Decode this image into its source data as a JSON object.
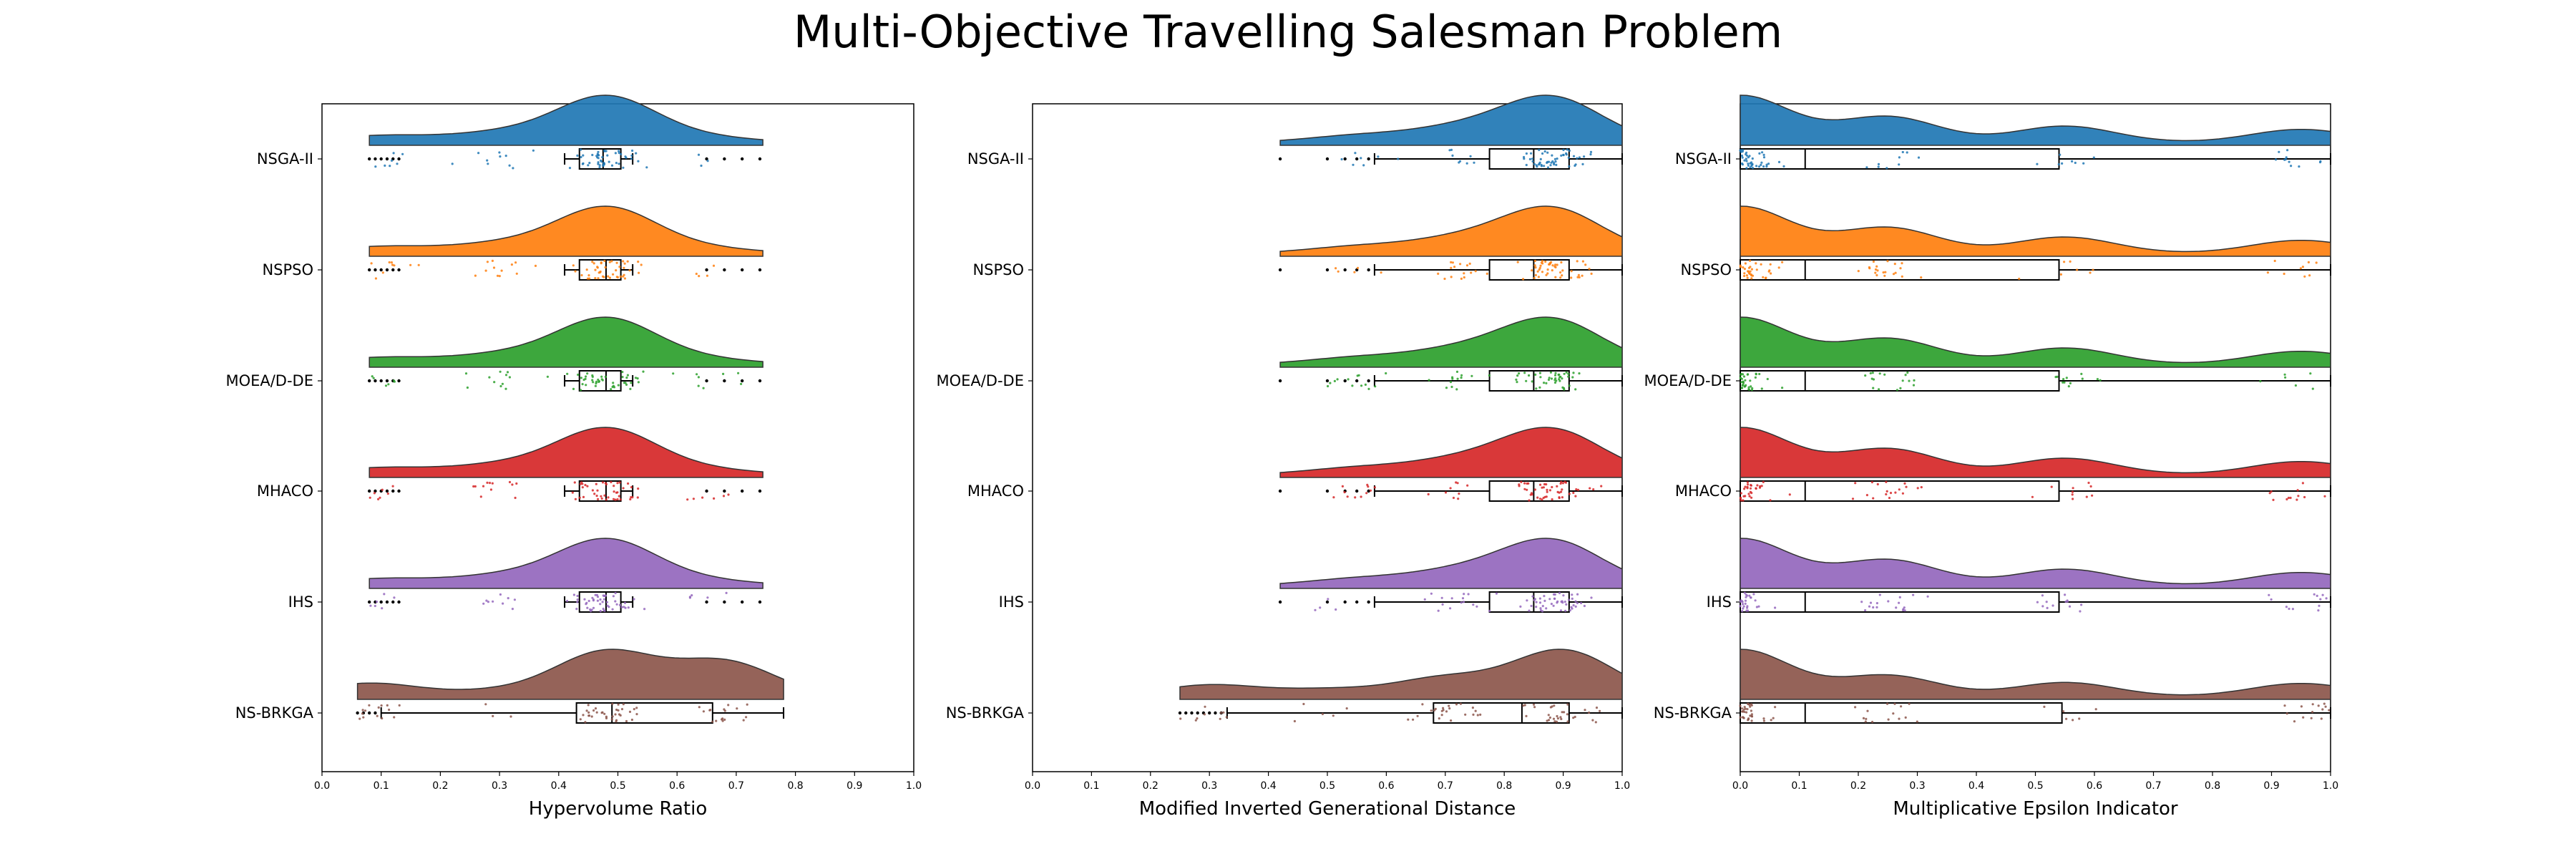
{
  "title": "Multi-Objective Travelling Salesman Problem",
  "colors": {
    "NSGA-II": "#1f77b4",
    "NSPSO": "#ff7f0e",
    "MOEA/D-DE": "#2ca02c",
    "MHACO": "#d62728",
    "IHS": "#9467bd",
    "NS-BRKGA": "#8c564b"
  },
  "chart_data": [
    {
      "type": "raincloud",
      "xlabel": "Hypervolume Ratio",
      "xlim": [
        0.0,
        1.0
      ],
      "xticks": [
        "0.0",
        "0.1",
        "0.2",
        "0.3",
        "0.4",
        "0.5",
        "0.6",
        "0.7",
        "0.8",
        "0.9",
        "1.0"
      ],
      "categories": [
        "NSGA-II",
        "NSPSO",
        "MOEA/D-DE",
        "MHACO",
        "IHS",
        "NS-BRKGA"
      ],
      "series": [
        {
          "name": "NSGA-II",
          "box": {
            "whislo": 0.41,
            "q1": 0.435,
            "med": 0.475,
            "q3": 0.505,
            "whishi": 0.525
          },
          "outliers": [
            0.08,
            0.09,
            0.1,
            0.11,
            0.12,
            0.13,
            0.65,
            0.68,
            0.71,
            0.74
          ],
          "kde_range": [
            0.08,
            0.745
          ],
          "kde": [
            [
              0.1,
              0.15
            ],
            [
              0.3,
              0.2
            ],
            [
              0.48,
              1.0
            ],
            [
              0.65,
              0.1
            ]
          ]
        },
        {
          "name": "NSPSO",
          "box": {
            "whislo": 0.41,
            "q1": 0.435,
            "med": 0.48,
            "q3": 0.505,
            "whishi": 0.525
          },
          "outliers": [
            0.08,
            0.09,
            0.1,
            0.11,
            0.12,
            0.13,
            0.65,
            0.68,
            0.71,
            0.74
          ],
          "kde_range": [
            0.08,
            0.745
          ],
          "kde": [
            [
              0.1,
              0.15
            ],
            [
              0.3,
              0.2
            ],
            [
              0.48,
              1.0
            ],
            [
              0.65,
              0.1
            ]
          ]
        },
        {
          "name": "MOEA/D-DE",
          "box": {
            "whislo": 0.41,
            "q1": 0.435,
            "med": 0.48,
            "q3": 0.505,
            "whishi": 0.525
          },
          "outliers": [
            0.08,
            0.09,
            0.1,
            0.11,
            0.12,
            0.13,
            0.65,
            0.68,
            0.71,
            0.74
          ],
          "kde_range": [
            0.08,
            0.745
          ],
          "kde": [
            [
              0.1,
              0.15
            ],
            [
              0.3,
              0.2
            ],
            [
              0.48,
              1.0
            ],
            [
              0.65,
              0.1
            ]
          ]
        },
        {
          "name": "MHACO",
          "box": {
            "whislo": 0.41,
            "q1": 0.435,
            "med": 0.48,
            "q3": 0.505,
            "whishi": 0.525
          },
          "outliers": [
            0.08,
            0.09,
            0.1,
            0.11,
            0.12,
            0.13,
            0.65,
            0.68,
            0.71,
            0.74
          ],
          "kde_range": [
            0.08,
            0.745
          ],
          "kde": [
            [
              0.1,
              0.15
            ],
            [
              0.3,
              0.2
            ],
            [
              0.48,
              1.0
            ],
            [
              0.65,
              0.1
            ]
          ]
        },
        {
          "name": "IHS",
          "box": {
            "whislo": 0.41,
            "q1": 0.435,
            "med": 0.48,
            "q3": 0.505,
            "whishi": 0.525
          },
          "outliers": [
            0.08,
            0.09,
            0.1,
            0.11,
            0.12,
            0.13,
            0.65,
            0.68,
            0.71,
            0.74
          ],
          "kde_range": [
            0.08,
            0.745
          ],
          "kde": [
            [
              0.1,
              0.15
            ],
            [
              0.3,
              0.2
            ],
            [
              0.48,
              1.0
            ],
            [
              0.65,
              0.1
            ]
          ]
        },
        {
          "name": "NS-BRKGA",
          "box": {
            "whislo": 0.1,
            "q1": 0.43,
            "med": 0.49,
            "q3": 0.66,
            "whishi": 0.78
          },
          "outliers": [
            0.06,
            0.07,
            0.08,
            0.09
          ],
          "kde_range": [
            0.06,
            0.78
          ],
          "kde": [
            [
              0.08,
              0.3
            ],
            [
              0.3,
              0.12
            ],
            [
              0.48,
              1.0
            ],
            [
              0.68,
              0.78
            ]
          ]
        }
      ]
    },
    {
      "type": "raincloud",
      "xlabel": "Modified Inverted Generational Distance",
      "xlim": [
        0.0,
        1.0
      ],
      "xticks": [
        "0.0",
        "0.1",
        "0.2",
        "0.3",
        "0.4",
        "0.5",
        "0.6",
        "0.7",
        "0.8",
        "0.9",
        "1.0"
      ],
      "categories": [
        "NSGA-II",
        "NSPSO",
        "MOEA/D-DE",
        "MHACO",
        "IHS",
        "NS-BRKGA"
      ],
      "series": [
        {
          "name": "NSGA-II",
          "box": {
            "whislo": 0.58,
            "q1": 0.775,
            "med": 0.85,
            "q3": 0.91,
            "whishi": 1.0
          },
          "outliers": [
            0.42,
            0.5,
            0.53,
            0.55,
            0.57
          ],
          "kde_range": [
            0.42,
            1.0
          ],
          "kde": [
            [
              0.55,
              0.15
            ],
            [
              0.72,
              0.3
            ],
            [
              0.88,
              1.0
            ]
          ]
        },
        {
          "name": "NSPSO",
          "box": {
            "whislo": 0.58,
            "q1": 0.775,
            "med": 0.85,
            "q3": 0.91,
            "whishi": 1.0
          },
          "outliers": [
            0.42,
            0.5,
            0.53,
            0.55,
            0.57
          ],
          "kde_range": [
            0.42,
            1.0
          ],
          "kde": [
            [
              0.55,
              0.15
            ],
            [
              0.72,
              0.3
            ],
            [
              0.88,
              1.0
            ]
          ]
        },
        {
          "name": "MOEA/D-DE",
          "box": {
            "whislo": 0.58,
            "q1": 0.775,
            "med": 0.85,
            "q3": 0.91,
            "whishi": 1.0
          },
          "outliers": [
            0.42,
            0.5,
            0.53,
            0.55,
            0.57
          ],
          "kde_range": [
            0.42,
            1.0
          ],
          "kde": [
            [
              0.55,
              0.15
            ],
            [
              0.72,
              0.3
            ],
            [
              0.88,
              1.0
            ]
          ]
        },
        {
          "name": "MHACO",
          "box": {
            "whislo": 0.58,
            "q1": 0.775,
            "med": 0.85,
            "q3": 0.91,
            "whishi": 1.0
          },
          "outliers": [
            0.42,
            0.5,
            0.53,
            0.55,
            0.57
          ],
          "kde_range": [
            0.42,
            1.0
          ],
          "kde": [
            [
              0.55,
              0.15
            ],
            [
              0.72,
              0.3
            ],
            [
              0.88,
              1.0
            ]
          ]
        },
        {
          "name": "IHS",
          "box": {
            "whislo": 0.58,
            "q1": 0.775,
            "med": 0.85,
            "q3": 0.91,
            "whishi": 1.0
          },
          "outliers": [
            0.42,
            0.5,
            0.53,
            0.55,
            0.57
          ],
          "kde_range": [
            0.42,
            1.0
          ],
          "kde": [
            [
              0.55,
              0.15
            ],
            [
              0.72,
              0.3
            ],
            [
              0.88,
              1.0
            ]
          ]
        },
        {
          "name": "NS-BRKGA",
          "box": {
            "whislo": 0.33,
            "q1": 0.68,
            "med": 0.83,
            "q3": 0.91,
            "whishi": 1.0
          },
          "outliers": [
            0.25,
            0.26,
            0.27,
            0.28,
            0.29,
            0.3,
            0.31,
            0.32
          ],
          "kde_range": [
            0.25,
            1.0
          ],
          "kde": [
            [
              0.3,
              0.25
            ],
            [
              0.5,
              0.15
            ],
            [
              0.7,
              0.4
            ],
            [
              0.9,
              1.0
            ]
          ]
        }
      ]
    },
    {
      "type": "raincloud",
      "xlabel": "Multiplicative Epsilon Indicator",
      "xlim": [
        0.0,
        1.0
      ],
      "xticks": [
        "0.0",
        "0.1",
        "0.2",
        "0.3",
        "0.4",
        "0.5",
        "0.6",
        "0.7",
        "0.8",
        "0.9",
        "1.0"
      ],
      "categories": [
        "NSGA-II",
        "NSPSO",
        "MOEA/D-DE",
        "MHACO",
        "IHS",
        "NS-BRKGA"
      ],
      "series": [
        {
          "name": "NSGA-II",
          "box": {
            "whislo": 0.0,
            "q1": 0.0,
            "med": 0.11,
            "q3": 0.54,
            "whishi": 1.0
          },
          "outliers": [],
          "kde_range": [
            0.0,
            1.0
          ],
          "kde": [
            [
              0.0,
              1.0
            ],
            [
              0.25,
              0.55
            ],
            [
              0.55,
              0.35
            ],
            [
              0.95,
              0.28
            ]
          ]
        },
        {
          "name": "NSPSO",
          "box": {
            "whislo": 0.0,
            "q1": 0.0,
            "med": 0.11,
            "q3": 0.54,
            "whishi": 1.0
          },
          "outliers": [],
          "kde_range": [
            0.0,
            1.0
          ],
          "kde": [
            [
              0.0,
              1.0
            ],
            [
              0.25,
              0.55
            ],
            [
              0.55,
              0.35
            ],
            [
              0.95,
              0.28
            ]
          ]
        },
        {
          "name": "MOEA/D-DE",
          "box": {
            "whislo": 0.0,
            "q1": 0.0,
            "med": 0.11,
            "q3": 0.54,
            "whishi": 1.0
          },
          "outliers": [],
          "kde_range": [
            0.0,
            1.0
          ],
          "kde": [
            [
              0.0,
              1.0
            ],
            [
              0.25,
              0.55
            ],
            [
              0.55,
              0.35
            ],
            [
              0.95,
              0.28
            ]
          ]
        },
        {
          "name": "MHACO",
          "box": {
            "whislo": 0.0,
            "q1": 0.0,
            "med": 0.11,
            "q3": 0.54,
            "whishi": 1.0
          },
          "outliers": [],
          "kde_range": [
            0.0,
            1.0
          ],
          "kde": [
            [
              0.0,
              1.0
            ],
            [
              0.25,
              0.55
            ],
            [
              0.55,
              0.35
            ],
            [
              0.95,
              0.28
            ]
          ]
        },
        {
          "name": "IHS",
          "box": {
            "whislo": 0.0,
            "q1": 0.0,
            "med": 0.11,
            "q3": 0.54,
            "whishi": 1.0
          },
          "outliers": [],
          "kde_range": [
            0.0,
            1.0
          ],
          "kde": [
            [
              0.0,
              1.0
            ],
            [
              0.25,
              0.55
            ],
            [
              0.55,
              0.35
            ],
            [
              0.95,
              0.28
            ]
          ]
        },
        {
          "name": "NS-BRKGA",
          "box": {
            "whislo": 0.0,
            "q1": 0.0,
            "med": 0.11,
            "q3": 0.545,
            "whishi": 1.0
          },
          "outliers": [],
          "kde_range": [
            0.0,
            1.0
          ],
          "kde": [
            [
              0.0,
              1.0
            ],
            [
              0.25,
              0.45
            ],
            [
              0.55,
              0.3
            ],
            [
              0.95,
              0.28
            ]
          ]
        }
      ]
    }
  ]
}
